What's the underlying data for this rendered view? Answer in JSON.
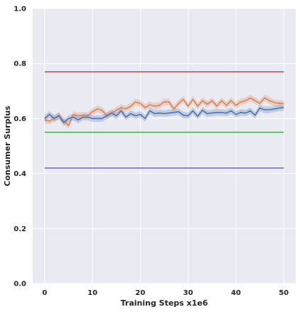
{
  "chart_data": {
    "type": "line",
    "title": "",
    "xlabel": "Training Steps x1e6",
    "ylabel": "Consumer Surplus",
    "xlim": [
      -2.5,
      52.5
    ],
    "ylim": [
      0,
      1
    ],
    "xticks": [
      0,
      10,
      20,
      30,
      40,
      50
    ],
    "yticks": [
      0.0,
      0.2,
      0.4,
      0.6,
      0.8,
      1.0
    ],
    "xtick_labels": [
      "0",
      "10",
      "20",
      "30",
      "40",
      "50"
    ],
    "ytick_labels": [
      "0.0",
      "0.2",
      "0.4",
      "0.6",
      "0.8",
      "1.0"
    ],
    "grid": true,
    "background": "#eaeaf2",
    "x": [
      0,
      1,
      2,
      3,
      4,
      5,
      6,
      7,
      8,
      9,
      10,
      11,
      12,
      13,
      14,
      15,
      16,
      17,
      18,
      19,
      20,
      21,
      22,
      23,
      24,
      25,
      26,
      27,
      28,
      29,
      30,
      31,
      32,
      33,
      34,
      35,
      36,
      37,
      38,
      39,
      40,
      41,
      42,
      43,
      44,
      45,
      46,
      47,
      48,
      49,
      50
    ],
    "series": [
      {
        "color": "#dd8452",
        "band": 0.012,
        "values": [
          0.595,
          0.59,
          0.6,
          0.61,
          0.59,
          0.575,
          0.615,
          0.61,
          0.612,
          0.61,
          0.625,
          0.635,
          0.63,
          0.61,
          0.62,
          0.63,
          0.64,
          0.635,
          0.645,
          0.66,
          0.655,
          0.64,
          0.65,
          0.645,
          0.648,
          0.66,
          0.66,
          0.635,
          0.655,
          0.67,
          0.645,
          0.67,
          0.645,
          0.665,
          0.652,
          0.665,
          0.645,
          0.665,
          0.648,
          0.665,
          0.648,
          0.66,
          0.665,
          0.675,
          0.665,
          0.655,
          0.675,
          0.665,
          0.658,
          0.655,
          0.655
        ]
      },
      {
        "color": "#4c72b0",
        "band": 0.012,
        "values": [
          0.6,
          0.615,
          0.6,
          0.61,
          0.585,
          0.6,
          0.605,
          0.595,
          0.605,
          0.605,
          0.6,
          0.6,
          0.6,
          0.61,
          0.62,
          0.61,
          0.628,
          0.605,
          0.618,
          0.61,
          0.615,
          0.6,
          0.628,
          0.618,
          0.62,
          0.618,
          0.62,
          0.622,
          0.625,
          0.612,
          0.61,
          0.628,
          0.608,
          0.63,
          0.618,
          0.62,
          0.622,
          0.622,
          0.62,
          0.628,
          0.615,
          0.622,
          0.62,
          0.628,
          0.612,
          0.638,
          0.632,
          0.632,
          0.635,
          0.638,
          0.64
        ]
      },
      {
        "color": "#c44e52",
        "band": 0,
        "values": [
          0.77,
          0.77,
          0.77,
          0.77,
          0.77,
          0.77,
          0.77,
          0.77,
          0.77,
          0.77,
          0.77,
          0.77,
          0.77,
          0.77,
          0.77,
          0.77,
          0.77,
          0.77,
          0.77,
          0.77,
          0.77,
          0.77,
          0.77,
          0.77,
          0.77,
          0.77,
          0.77,
          0.77,
          0.77,
          0.77,
          0.77,
          0.77,
          0.77,
          0.77,
          0.77,
          0.77,
          0.77,
          0.77,
          0.77,
          0.77,
          0.77,
          0.77,
          0.77,
          0.77,
          0.77,
          0.77,
          0.77,
          0.77,
          0.77,
          0.77,
          0.77
        ]
      },
      {
        "color": "#55a868",
        "band": 0,
        "values": [
          0.55,
          0.55,
          0.55,
          0.55,
          0.55,
          0.55,
          0.55,
          0.55,
          0.55,
          0.55,
          0.55,
          0.55,
          0.55,
          0.55,
          0.55,
          0.55,
          0.55,
          0.55,
          0.55,
          0.55,
          0.55,
          0.55,
          0.55,
          0.55,
          0.55,
          0.55,
          0.55,
          0.55,
          0.55,
          0.55,
          0.55,
          0.55,
          0.55,
          0.55,
          0.55,
          0.55,
          0.55,
          0.55,
          0.55,
          0.55,
          0.55,
          0.55,
          0.55,
          0.55,
          0.55,
          0.55,
          0.55,
          0.55,
          0.55,
          0.55,
          0.55
        ]
      },
      {
        "color": "#8172b3",
        "band": 0,
        "values": [
          0.42,
          0.42,
          0.42,
          0.42,
          0.42,
          0.42,
          0.42,
          0.42,
          0.42,
          0.42,
          0.42,
          0.42,
          0.42,
          0.42,
          0.42,
          0.42,
          0.42,
          0.42,
          0.42,
          0.42,
          0.42,
          0.42,
          0.42,
          0.42,
          0.42,
          0.42,
          0.42,
          0.42,
          0.42,
          0.42,
          0.42,
          0.42,
          0.42,
          0.42,
          0.42,
          0.42,
          0.42,
          0.42,
          0.42,
          0.42,
          0.42,
          0.42,
          0.42,
          0.42,
          0.42,
          0.42,
          0.42,
          0.42,
          0.42,
          0.42,
          0.42
        ]
      }
    ]
  }
}
